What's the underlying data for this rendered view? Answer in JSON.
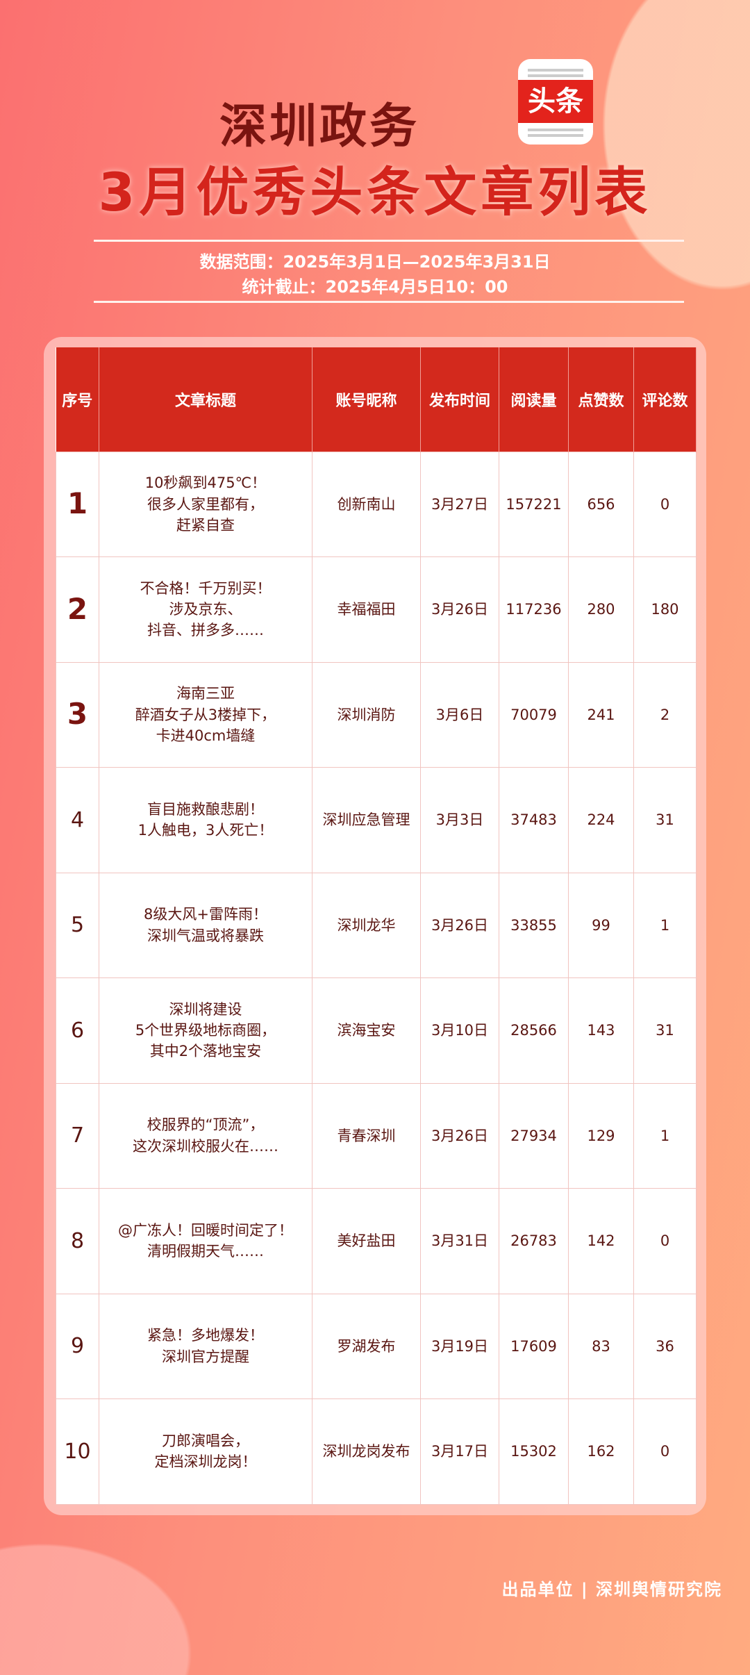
{
  "header": {
    "title_line1": "深圳政务",
    "logo_text": "头条",
    "title_line2": "3月优秀头条文章列表",
    "data_range": "数据范围：2025年3月1日—2025年3月31日",
    "cutoff": "统计截止：2025年4月5日10：00"
  },
  "colors": {
    "header_bg": "#d3291d",
    "title_dark": "#7a1410",
    "title_red": "#d4241c"
  },
  "table": {
    "columns": [
      "序号",
      "文章标题",
      "账号昵称",
      "发布时间",
      "阅读量",
      "点赞数",
      "评论数"
    ],
    "rows": [
      {
        "rank": "1",
        "title": [
          "10秒飙到475℃！",
          "很多人家里都有，",
          "赶紧自查"
        ],
        "account": "创新南山",
        "date": "3月27日",
        "reads": "157221",
        "likes": "656",
        "comments": "0"
      },
      {
        "rank": "2",
        "title": [
          "不合格！千万别买！",
          "涉及京东、",
          "抖音、拼多多……"
        ],
        "account": "幸福福田",
        "date": "3月26日",
        "reads": "117236",
        "likes": "280",
        "comments": "180"
      },
      {
        "rank": "3",
        "title": [
          "海南三亚",
          "醉酒女子从3楼掉下，",
          "卡进40cm墙缝"
        ],
        "account": "深圳消防",
        "date": "3月6日",
        "reads": "70079",
        "likes": "241",
        "comments": "2"
      },
      {
        "rank": "4",
        "title": [
          "盲目施救酿悲剧！",
          "1人触电，3人死亡！"
        ],
        "account": "深圳应急管理",
        "date": "3月3日",
        "reads": "37483",
        "likes": "224",
        "comments": "31"
      },
      {
        "rank": "5",
        "title": [
          "8级大风+雷阵雨！",
          "深圳气温或将暴跌"
        ],
        "account": "深圳龙华",
        "date": "3月26日",
        "reads": "33855",
        "likes": "99",
        "comments": "1"
      },
      {
        "rank": "6",
        "title": [
          "深圳将建设",
          "5个世界级地标商圈，",
          "其中2个落地宝安"
        ],
        "account": "滨海宝安",
        "date": "3月10日",
        "reads": "28566",
        "likes": "143",
        "comments": "31"
      },
      {
        "rank": "7",
        "title": [
          "校服界的“顶流”，",
          "这次深圳校服火在……"
        ],
        "account": "青春深圳",
        "date": "3月26日",
        "reads": "27934",
        "likes": "129",
        "comments": "1"
      },
      {
        "rank": "8",
        "title": [
          "@广冻人！回暖时间定了！",
          "清明假期天气……"
        ],
        "account": "美好盐田",
        "date": "3月31日",
        "reads": "26783",
        "likes": "142",
        "comments": "0"
      },
      {
        "rank": "9",
        "title": [
          "紧急！多地爆发！",
          "深圳官方提醒"
        ],
        "account": "罗湖发布",
        "date": "3月19日",
        "reads": "17609",
        "likes": "83",
        "comments": "36"
      },
      {
        "rank": "10",
        "title": [
          "刀郎演唱会，",
          "定档深圳龙岗！"
        ],
        "account": "深圳龙岗发布",
        "date": "3月17日",
        "reads": "15302",
        "likes": "162",
        "comments": "0"
      }
    ]
  },
  "footer": "出品单位 | 深圳舆情研究院"
}
